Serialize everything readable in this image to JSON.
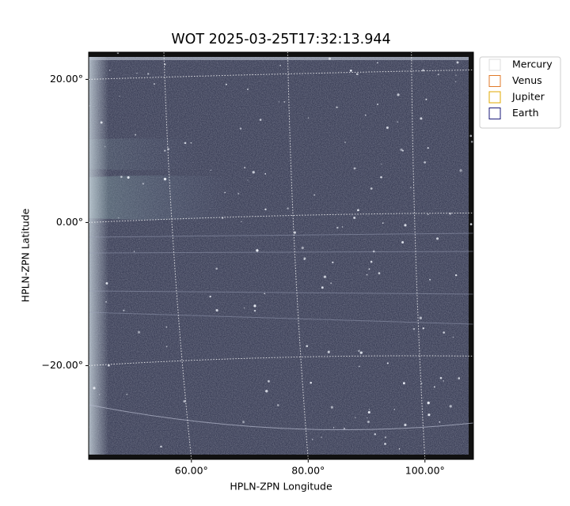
{
  "chart_data": {
    "type": "image",
    "title": "WOT 2025-03-25T17:32:13.944",
    "x_label": "HPLN-ZPN Longitude",
    "y_label": "HPLN-ZPN Latitude",
    "xlim": [
      42.4,
      108.3
    ],
    "ylim": [
      -33.1,
      23.8
    ],
    "xticks": [
      {
        "value": 60,
        "label": "60.00°"
      },
      {
        "value": 80,
        "label": "80.00°"
      },
      {
        "value": 100,
        "label": "100.00°"
      }
    ],
    "yticks": [
      {
        "value": -20,
        "label": "−20.00°"
      },
      {
        "value": 0,
        "label": "0.00°"
      },
      {
        "value": 20,
        "label": "20.00°"
      }
    ],
    "grid": true,
    "legend_position": "outside upper right",
    "legend": [
      {
        "name": "Mercury",
        "color": "#dddddd"
      },
      {
        "name": "Venus",
        "color": "#e07a2a"
      },
      {
        "name": "Jupiter",
        "color": "#e0a800"
      },
      {
        "name": "Earth",
        "color": "#1a1a7a"
      }
    ]
  }
}
